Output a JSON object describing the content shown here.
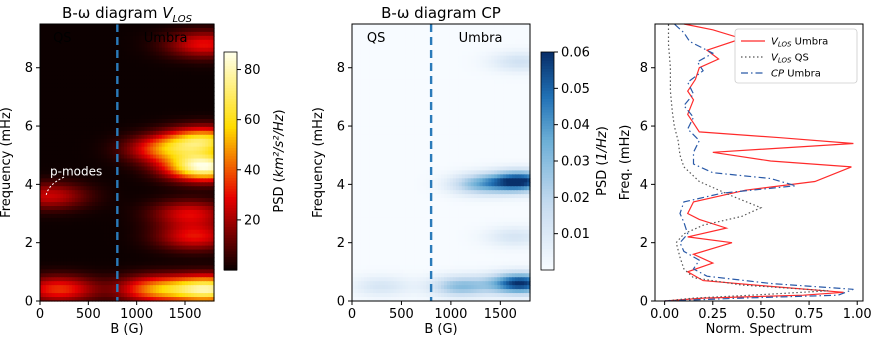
{
  "chart_data": [
    {
      "type": "heatmap",
      "title": "B-ω diagram V_LOS",
      "xlabel": "B (G)",
      "ylabel": "Frequency (mHz)",
      "xlim": [
        0,
        1800
      ],
      "ylim": [
        0,
        9.5
      ],
      "xticks": [
        0,
        500,
        1000,
        1500
      ],
      "yticks": [
        0,
        2,
        4,
        6,
        8
      ],
      "colormap": "hot",
      "colorbar": {
        "label": "PSD (km²/s²/Hz)",
        "range": [
          0,
          87
        ],
        "ticks": [
          20,
          40,
          60,
          80
        ]
      },
      "divider_x": 800,
      "region_labels": [
        "QS",
        "Umbra"
      ],
      "annotation": "p-modes",
      "blobs": [
        {
          "B": 1750,
          "f": 0.4,
          "value": 75
        },
        {
          "B": 1200,
          "f": 0.4,
          "value": 45
        },
        {
          "B": 200,
          "f": 0.4,
          "value": 35
        },
        {
          "B": 1700,
          "f": 4.6,
          "value": 85
        },
        {
          "B": 1700,
          "f": 5.5,
          "value": 60
        },
        {
          "B": 1300,
          "f": 5.2,
          "value": 40
        },
        {
          "B": 1600,
          "f": 2.2,
          "value": 30
        },
        {
          "B": 1550,
          "f": 3.0,
          "value": 28
        },
        {
          "B": 1700,
          "f": 8.8,
          "value": 30
        },
        {
          "B": 100,
          "f": 3.6,
          "value": 25
        }
      ]
    },
    {
      "type": "heatmap",
      "title": "B-ω diagram CP",
      "xlabel": "B (G)",
      "ylabel": "Frequency (mHz)",
      "xlim": [
        0,
        1800
      ],
      "ylim": [
        0,
        9.5
      ],
      "xticks": [
        0,
        500,
        1000,
        1500
      ],
      "yticks": [
        0,
        2,
        4,
        6,
        8
      ],
      "colormap": "Blues",
      "colorbar": {
        "label": "PSD (1/Hz)",
        "range": [
          0,
          0.06
        ],
        "ticks": [
          0.01,
          0.02,
          0.03,
          0.04,
          0.05,
          0.06
        ]
      },
      "divider_x": 800,
      "region_labels": [
        "QS",
        "Umbra"
      ],
      "blobs": [
        {
          "B": 1700,
          "f": 0.6,
          "value": 0.06
        },
        {
          "B": 1100,
          "f": 0.5,
          "value": 0.03
        },
        {
          "B": 300,
          "f": 0.5,
          "value": 0.012
        },
        {
          "B": 1700,
          "f": 4.1,
          "value": 0.06
        },
        {
          "B": 1300,
          "f": 4.0,
          "value": 0.03
        },
        {
          "B": 1650,
          "f": 2.2,
          "value": 0.012
        },
        {
          "B": 1700,
          "f": 8.2,
          "value": 0.014
        }
      ]
    },
    {
      "type": "line",
      "xlabel": "Norm. Spectrum",
      "ylabel": "Freq. (mHz)",
      "xlim": [
        -0.05,
        1.03
      ],
      "ylim": [
        0,
        9.5
      ],
      "xticks": [
        0.0,
        0.25,
        0.5,
        0.75,
        1.0
      ],
      "yticks": [
        0,
        2,
        4,
        6,
        8
      ],
      "legend": "top-right",
      "series": [
        {
          "name": "V_LOS Umbra",
          "color": "#ff2b2b",
          "style": "solid",
          "points": [
            [
              0.0,
              0.0
            ],
            [
              0.2,
              0.1
            ],
            [
              0.72,
              0.2
            ],
            [
              0.93,
              0.3
            ],
            [
              0.55,
              0.5
            ],
            [
              0.2,
              0.7
            ],
            [
              0.12,
              1.0
            ],
            [
              0.25,
              1.3
            ],
            [
              0.15,
              1.6
            ],
            [
              0.35,
              2.0
            ],
            [
              0.12,
              2.2
            ],
            [
              0.32,
              2.5
            ],
            [
              0.18,
              2.8
            ],
            [
              0.12,
              3.0
            ],
            [
              0.15,
              3.4
            ],
            [
              0.42,
              3.8
            ],
            [
              0.78,
              4.1
            ],
            [
              0.97,
              4.6
            ],
            [
              0.55,
              4.8
            ],
            [
              0.25,
              5.1
            ],
            [
              0.98,
              5.4
            ],
            [
              0.6,
              5.6
            ],
            [
              0.18,
              5.8
            ],
            [
              0.15,
              6.1
            ],
            [
              0.12,
              6.4
            ],
            [
              0.15,
              6.9
            ],
            [
              0.12,
              7.2
            ],
            [
              0.16,
              7.6
            ],
            [
              0.18,
              8.0
            ],
            [
              0.28,
              8.3
            ],
            [
              0.22,
              8.6
            ],
            [
              0.4,
              9.0
            ],
            [
              0.25,
              9.3
            ],
            [
              0.1,
              9.5
            ]
          ]
        },
        {
          "name": "V_LOS QS",
          "color": "#555555",
          "style": "dotted",
          "points": [
            [
              0.0,
              0.0
            ],
            [
              0.15,
              0.1
            ],
            [
              0.45,
              0.2
            ],
            [
              0.85,
              0.35
            ],
            [
              0.4,
              0.55
            ],
            [
              0.15,
              0.8
            ],
            [
              0.1,
              1.1
            ],
            [
              0.08,
              1.5
            ],
            [
              0.06,
              2.0
            ],
            [
              0.1,
              2.3
            ],
            [
              0.2,
              2.6
            ],
            [
              0.4,
              2.9
            ],
            [
              0.5,
              3.2
            ],
            [
              0.35,
              3.6
            ],
            [
              0.18,
              4.1
            ],
            [
              0.1,
              4.6
            ],
            [
              0.08,
              5.0
            ],
            [
              0.07,
              5.5
            ],
            [
              0.05,
              6.0
            ],
            [
              0.04,
              6.5
            ],
            [
              0.03,
              7.2
            ],
            [
              0.03,
              8.0
            ],
            [
              0.02,
              8.8
            ],
            [
              0.02,
              9.5
            ]
          ]
        },
        {
          "name": "CP Umbra",
          "color": "#2a5aa8",
          "style": "dashdot",
          "points": [
            [
              0.0,
              0.0
            ],
            [
              0.4,
              0.1
            ],
            [
              0.9,
              0.2
            ],
            [
              0.98,
              0.4
            ],
            [
              0.55,
              0.6
            ],
            [
              0.22,
              0.85
            ],
            [
              0.15,
              1.1
            ],
            [
              0.18,
              1.4
            ],
            [
              0.1,
              1.7
            ],
            [
              0.08,
              2.0
            ],
            [
              0.12,
              2.3
            ],
            [
              0.1,
              2.7
            ],
            [
              0.08,
              3.0
            ],
            [
              0.1,
              3.4
            ],
            [
              0.3,
              3.7
            ],
            [
              0.68,
              3.95
            ],
            [
              0.55,
              4.2
            ],
            [
              0.25,
              4.4
            ],
            [
              0.15,
              4.7
            ],
            [
              0.15,
              5.1
            ],
            [
              0.18,
              5.5
            ],
            [
              0.12,
              5.9
            ],
            [
              0.15,
              6.3
            ],
            [
              0.1,
              6.7
            ],
            [
              0.15,
              7.1
            ],
            [
              0.12,
              7.5
            ],
            [
              0.2,
              7.9
            ],
            [
              0.17,
              8.2
            ],
            [
              0.25,
              8.5
            ],
            [
              0.13,
              8.9
            ],
            [
              0.1,
              9.2
            ],
            [
              0.05,
              9.5
            ]
          ]
        }
      ]
    }
  ]
}
